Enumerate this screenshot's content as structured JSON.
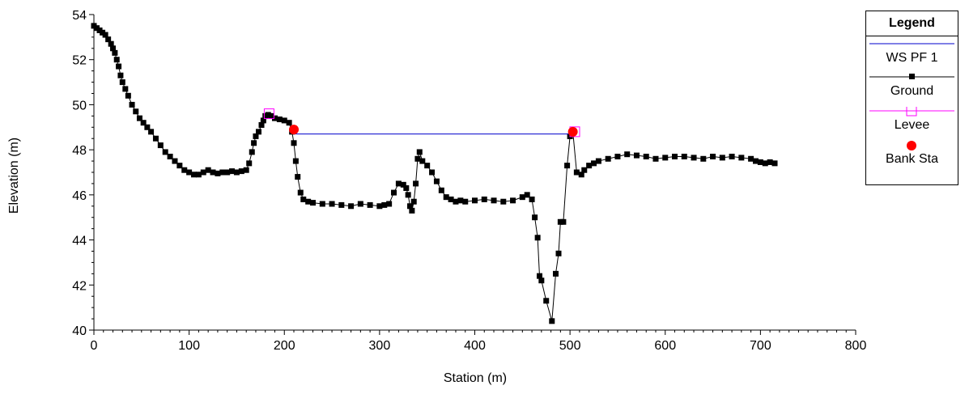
{
  "chart_data": {
    "type": "line",
    "xlabel": "Station (m)",
    "ylabel": "Elevation (m)",
    "xlim": [
      0,
      800
    ],
    "ylim": [
      40,
      54
    ],
    "x_ticks": [
      0,
      100,
      200,
      300,
      400,
      500,
      600,
      700,
      800
    ],
    "y_ticks": [
      40,
      42,
      44,
      46,
      48,
      50,
      52,
      54
    ],
    "grid": false,
    "legend_placement": "top-right",
    "legend_title": "Legend",
    "series": [
      {
        "name": "WS PF 1",
        "color": "#0000cc",
        "marker": "none",
        "x": [
          210,
          503
        ],
        "y": [
          48.7,
          48.7
        ]
      },
      {
        "name": "Ground",
        "color": "#000000",
        "marker": "square",
        "x": [
          0,
          3,
          6,
          9,
          12,
          15,
          18,
          20,
          22,
          24,
          26,
          28,
          30,
          33,
          36,
          40,
          44,
          48,
          52,
          56,
          60,
          65,
          70,
          75,
          80,
          85,
          90,
          95,
          100,
          105,
          110,
          115,
          120,
          125,
          130,
          135,
          140,
          145,
          150,
          155,
          160,
          163,
          166,
          168,
          170,
          173,
          176,
          178,
          180,
          183,
          186,
          190,
          195,
          200,
          205,
          208,
          210,
          212,
          214,
          217,
          220,
          225,
          230,
          240,
          250,
          260,
          270,
          280,
          290,
          300,
          305,
          310,
          315,
          320,
          325,
          328,
          330,
          332,
          334,
          336,
          338,
          340,
          342,
          345,
          350,
          355,
          360,
          365,
          370,
          375,
          380,
          385,
          390,
          400,
          410,
          420,
          430,
          440,
          450,
          455,
          460,
          463,
          466,
          468,
          470,
          475,
          481,
          485,
          488,
          490,
          493,
          497,
          500,
          503,
          507,
          512,
          515,
          520,
          525,
          530,
          540,
          550,
          560,
          570,
          580,
          590,
          600,
          610,
          620,
          630,
          640,
          650,
          660,
          670,
          680,
          690,
          695,
          700,
          705,
          710,
          715
        ],
        "y": [
          53.5,
          53.4,
          53.3,
          53.2,
          53.1,
          52.9,
          52.7,
          52.5,
          52.3,
          52.0,
          51.7,
          51.3,
          51.0,
          50.7,
          50.4,
          50.0,
          49.7,
          49.4,
          49.2,
          49.0,
          48.8,
          48.5,
          48.2,
          47.9,
          47.7,
          47.5,
          47.3,
          47.1,
          47.0,
          46.9,
          46.9,
          47.0,
          47.1,
          47.0,
          46.95,
          47.0,
          47.0,
          47.05,
          47.0,
          47.05,
          47.1,
          47.4,
          47.9,
          48.3,
          48.6,
          48.8,
          49.1,
          49.3,
          49.5,
          49.55,
          49.5,
          49.4,
          49.35,
          49.3,
          49.2,
          48.8,
          48.3,
          47.5,
          46.8,
          46.1,
          45.8,
          45.7,
          45.65,
          45.6,
          45.6,
          45.55,
          45.5,
          45.6,
          45.55,
          45.5,
          45.55,
          45.6,
          46.1,
          46.5,
          46.45,
          46.3,
          46.0,
          45.5,
          45.3,
          45.7,
          46.5,
          47.6,
          47.9,
          47.5,
          47.3,
          47.0,
          46.6,
          46.2,
          45.9,
          45.8,
          45.7,
          45.75,
          45.7,
          45.75,
          45.8,
          45.75,
          45.7,
          45.75,
          45.9,
          46.0,
          45.8,
          45.0,
          44.1,
          42.4,
          42.2,
          41.3,
          40.4,
          42.5,
          43.4,
          44.8,
          44.8,
          47.3,
          48.6,
          48.8,
          47.0,
          46.9,
          47.1,
          47.3,
          47.4,
          47.5,
          47.6,
          47.7,
          47.8,
          47.75,
          47.7,
          47.6,
          47.65,
          47.7,
          47.7,
          47.65,
          47.6,
          47.7,
          47.65,
          47.7,
          47.65,
          47.6,
          47.5,
          47.45,
          47.4,
          47.45,
          47.4
        ]
      },
      {
        "name": "Levee",
        "color": "#ff00ff",
        "marker": "open-square",
        "x": [
          184,
          505
        ],
        "y": [
          49.6,
          48.8
        ]
      },
      {
        "name": "Bank Sta",
        "color": "#ff0000",
        "marker": "filled-circle",
        "x": [
          210,
          503
        ],
        "y": [
          48.9,
          48.8
        ]
      }
    ]
  }
}
